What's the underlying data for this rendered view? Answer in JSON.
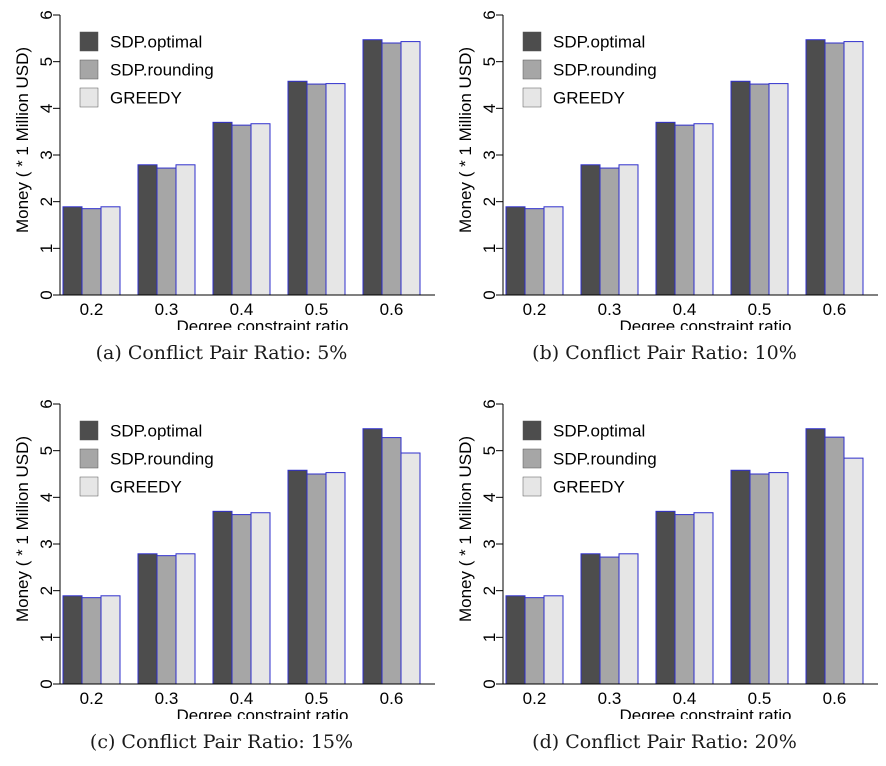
{
  "chart_data": [
    {
      "type": "bar",
      "caption": "(a) Conflict Pair Ratio: 5%",
      "xlabel": "Degree constraint ratio",
      "ylabel": "Money ( * 1 Million USD)",
      "ylim": [
        0,
        6
      ],
      "yticks": [
        "0",
        "1",
        "2",
        "3",
        "4",
        "5",
        "6"
      ],
      "categories": [
        "0.2",
        "0.3",
        "0.4",
        "0.5",
        "0.6"
      ],
      "legend_position": "top-left",
      "series": [
        {
          "name": "SDP.optimal",
          "color": "#4d4d4d",
          "values": [
            1.89,
            2.79,
            3.7,
            4.58,
            5.47
          ]
        },
        {
          "name": "SDP.rounding",
          "color": "#a6a6a6",
          "values": [
            1.85,
            2.72,
            3.64,
            4.52,
            5.4
          ]
        },
        {
          "name": "GREEDY",
          "color": "#e6e6e6",
          "values": [
            1.89,
            2.79,
            3.67,
            4.53,
            5.43
          ]
        }
      ]
    },
    {
      "type": "bar",
      "caption": "(b) Conflict Pair Ratio: 10%",
      "xlabel": "Degree constraint ratio",
      "ylabel": "Money ( * 1 Million USD)",
      "ylim": [
        0,
        6
      ],
      "yticks": [
        "0",
        "1",
        "2",
        "3",
        "4",
        "5",
        "6"
      ],
      "categories": [
        "0.2",
        "0.3",
        "0.4",
        "0.5",
        "0.6"
      ],
      "legend_position": "top-left",
      "series": [
        {
          "name": "SDP.optimal",
          "color": "#4d4d4d",
          "values": [
            1.89,
            2.79,
            3.7,
            4.58,
            5.47
          ]
        },
        {
          "name": "SDP.rounding",
          "color": "#a6a6a6",
          "values": [
            1.85,
            2.72,
            3.64,
            4.52,
            5.4
          ]
        },
        {
          "name": "GREEDY",
          "color": "#e6e6e6",
          "values": [
            1.89,
            2.79,
            3.67,
            4.53,
            5.43
          ]
        }
      ]
    },
    {
      "type": "bar",
      "caption": "(c) Conflict Pair Ratio: 15%",
      "xlabel": "Degree constraint ratio",
      "ylabel": "Money ( * 1 Million USD)",
      "ylim": [
        0,
        6
      ],
      "yticks": [
        "0",
        "1",
        "2",
        "3",
        "4",
        "5",
        "6"
      ],
      "categories": [
        "0.2",
        "0.3",
        "0.4",
        "0.5",
        "0.6"
      ],
      "legend_position": "top-left",
      "series": [
        {
          "name": "SDP.optimal",
          "color": "#4d4d4d",
          "values": [
            1.89,
            2.79,
            3.7,
            4.58,
            5.47
          ]
        },
        {
          "name": "SDP.rounding",
          "color": "#a6a6a6",
          "values": [
            1.85,
            2.75,
            3.63,
            4.5,
            5.28
          ]
        },
        {
          "name": "GREEDY",
          "color": "#e6e6e6",
          "values": [
            1.89,
            2.79,
            3.67,
            4.53,
            4.95
          ]
        }
      ]
    },
    {
      "type": "bar",
      "caption": "(d) Conflict Pair Ratio: 20%",
      "xlabel": "Degree constraint ratio",
      "ylabel": "Money ( * 1 Million USD)",
      "ylim": [
        0,
        6
      ],
      "yticks": [
        "0",
        "1",
        "2",
        "3",
        "4",
        "5",
        "6"
      ],
      "categories": [
        "0.2",
        "0.3",
        "0.4",
        "0.5",
        "0.6"
      ],
      "legend_position": "top-left",
      "series": [
        {
          "name": "SDP.optimal",
          "color": "#4d4d4d",
          "values": [
            1.89,
            2.79,
            3.7,
            4.58,
            5.47
          ]
        },
        {
          "name": "SDP.rounding",
          "color": "#a6a6a6",
          "values": [
            1.85,
            2.72,
            3.63,
            4.5,
            5.29
          ]
        },
        {
          "name": "GREEDY",
          "color": "#e6e6e6",
          "values": [
            1.89,
            2.79,
            3.67,
            4.53,
            4.84
          ]
        }
      ]
    }
  ],
  "style": {
    "bar_edge_color": "#2f2fcc",
    "axis_color": "#000000"
  }
}
